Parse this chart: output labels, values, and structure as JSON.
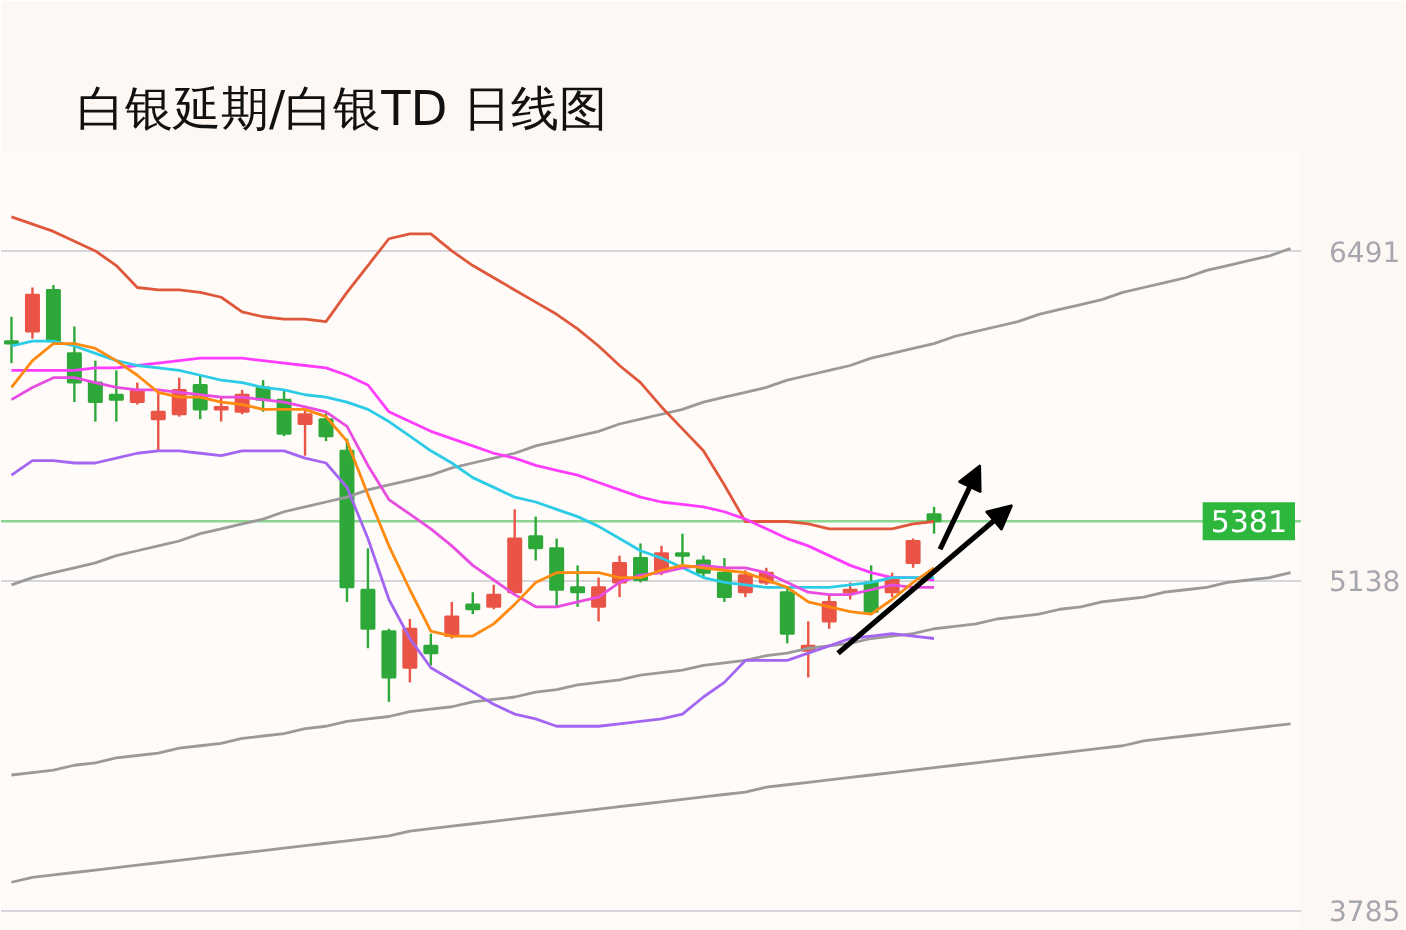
{
  "chart_data": {
    "type": "candlestick",
    "title": "白银延期/白银TD 日线图",
    "categories": [
      null,
      null,
      null,
      null,
      null,
      null,
      null,
      null,
      null,
      null,
      null,
      null,
      null,
      null,
      null,
      null,
      null,
      null,
      null,
      null,
      null,
      null,
      null,
      null,
      null,
      null,
      null,
      null,
      null,
      null,
      null,
      null,
      null,
      null,
      null,
      null,
      null,
      null,
      null,
      null,
      null,
      null,
      null,
      null,
      null,
      null,
      null,
      null,
      null,
      null,
      null,
      null,
      null,
      null,
      null,
      null,
      null,
      null,
      null,
      null,
      null,
      null
    ],
    "ohlc": [
      [
        6120,
        6220,
        6030,
        6110
      ],
      [
        6160,
        6340,
        6130,
        6310
      ],
      [
        6330,
        6350,
        6110,
        6120
      ],
      [
        6070,
        6180,
        5870,
        5950
      ],
      [
        5950,
        6040,
        5790,
        5870
      ],
      [
        5900,
        6000,
        5790,
        5880
      ],
      [
        5870,
        5950,
        5860,
        5920
      ],
      [
        5800,
        5920,
        5670,
        5830
      ],
      [
        5820,
        5970,
        5810,
        5920
      ],
      [
        5940,
        5980,
        5800,
        5840
      ],
      [
        5840,
        5890,
        5790,
        5850
      ],
      [
        5830,
        5920,
        5820,
        5900
      ],
      [
        5930,
        5960,
        5830,
        5880
      ],
      [
        5880,
        5920,
        5730,
        5740
      ],
      [
        5780,
        5840,
        5650,
        5820
      ],
      [
        5800,
        5830,
        5710,
        5730
      ],
      [
        5670,
        5720,
        5050,
        5110
      ],
      [
        5100,
        5270,
        4860,
        4940
      ],
      [
        4930,
        4940,
        4640,
        4740
      ],
      [
        4780,
        4980,
        4720,
        4940
      ],
      [
        4870,
        4920,
        4790,
        4840
      ],
      [
        4910,
        5050,
        4900,
        4990
      ],
      [
        5040,
        5090,
        5000,
        5020
      ],
      [
        5030,
        5120,
        5020,
        5080
      ],
      [
        5090,
        5430,
        5080,
        5310
      ],
      [
        5320,
        5400,
        5220,
        5270
      ],
      [
        5270,
        5310,
        5030,
        5100
      ],
      [
        5110,
        5200,
        5030,
        5090
      ],
      [
        5030,
        5150,
        4970,
        5110
      ],
      [
        5130,
        5240,
        5070,
        5210
      ],
      [
        5230,
        5290,
        5130,
        5140
      ],
      [
        5180,
        5280,
        5160,
        5250
      ],
      [
        5250,
        5330,
        5190,
        5240
      ],
      [
        5220,
        5240,
        5150,
        5170
      ],
      [
        5170,
        5230,
        5050,
        5070
      ],
      [
        5090,
        5180,
        5070,
        5160
      ],
      [
        5130,
        5190,
        5120,
        5170
      ],
      [
        5090,
        5110,
        4880,
        4920
      ],
      [
        4850,
        4970,
        4740,
        4870
      ],
      [
        4970,
        5080,
        4940,
        5050
      ],
      [
        5090,
        5130,
        5060,
        5100
      ],
      [
        5130,
        5200,
        5000,
        5010
      ],
      [
        5090,
        5170,
        5070,
        5150
      ],
      [
        5210,
        5310,
        5190,
        5300
      ],
      [
        5410,
        5440,
        5330,
        5381
      ],
      null,
      null,
      null,
      null,
      null,
      null,
      null,
      null,
      null,
      null,
      null,
      null,
      null,
      null,
      null,
      null,
      null
    ],
    "colors": [
      "#2fa83a",
      "#ea5446",
      "#2fa83a",
      "#2fa83a",
      "#2fa83a",
      "#2fa83a",
      "#ea5446",
      "#ea5446",
      "#ea5446",
      "#2fa83a",
      "#ea5446",
      "#ea5446",
      "#2fa83a",
      "#2fa83a",
      "#ea5446",
      "#2fa83a",
      "#2fa83a",
      "#2fa83a",
      "#2fa83a",
      "#ea5446",
      "#2fa83a",
      "#ea5446",
      "#2fa83a",
      "#ea5446",
      "#ea5446",
      "#2fa83a",
      "#2fa83a",
      "#2fa83a",
      "#ea5446",
      "#ea5446",
      "#2fa83a",
      "#ea5446",
      "#2fa83a",
      "#2fa83a",
      "#2fa83a",
      "#ea5446",
      "#ea5446",
      "#2fa83a",
      "#ea5446",
      "#ea5446",
      "#ea5446",
      "#2fa83a",
      "#ea5446",
      "#ea5446",
      "#2fa83a",
      null,
      null,
      null,
      null,
      null,
      null,
      null,
      null,
      null,
      null,
      null,
      null,
      null,
      null,
      null,
      null,
      null
    ],
    "series": [
      {
        "type": "line",
        "color": "#9a9a9a",
        "values": [
          5120,
          5150,
          5170,
          5190,
          5210,
          5240,
          5260,
          5280,
          5300,
          5330,
          5350,
          5370,
          5390,
          5420,
          5440,
          5460,
          5480,
          5510,
          5530,
          5550,
          5570,
          5600,
          5620,
          5640,
          5660,
          5690,
          5710,
          5730,
          5750,
          5780,
          5800,
          5820,
          5840,
          5870,
          5890,
          5910,
          5930,
          5960,
          5980,
          6000,
          6020,
          6050,
          6070,
          6090,
          6110,
          6140,
          6160,
          6180,
          6200,
          6230,
          6250,
          6270,
          6290,
          6320,
          6340,
          6360,
          6380,
          6410,
          6430,
          6450,
          6470,
          6500
        ]
      },
      {
        "type": "line",
        "color": "#9a9a9a",
        "values": [
          4340,
          4350,
          4360,
          4380,
          4390,
          4410,
          4420,
          4430,
          4450,
          4460,
          4470,
          4490,
          4500,
          4510,
          4530,
          4540,
          4560,
          4570,
          4580,
          4600,
          4610,
          4620,
          4640,
          4650,
          4660,
          4680,
          4690,
          4710,
          4720,
          4730,
          4750,
          4760,
          4770,
          4790,
          4800,
          4810,
          4830,
          4840,
          4860,
          4870,
          4880,
          4900,
          4910,
          4920,
          4940,
          4950,
          4960,
          4980,
          4990,
          5000,
          5020,
          5030,
          5050,
          5060,
          5070,
          5090,
          5100,
          5110,
          5130,
          5140,
          5150,
          5170
        ]
      },
      {
        "type": "line",
        "color": "#9a9a9a",
        "values": [
          3900,
          3920,
          3930,
          3940,
          3950,
          3960,
          3970,
          3980,
          3990,
          4000,
          4010,
          4020,
          4030,
          4040,
          4050,
          4060,
          4070,
          4080,
          4090,
          4110,
          4120,
          4130,
          4140,
          4150,
          4160,
          4170,
          4180,
          4190,
          4200,
          4210,
          4220,
          4230,
          4240,
          4250,
          4260,
          4270,
          4290,
          4300,
          4310,
          4320,
          4330,
          4340,
          4350,
          4360,
          4370,
          4380,
          4390,
          4400,
          4410,
          4420,
          4430,
          4440,
          4450,
          4460,
          4480,
          4490,
          4500,
          4510,
          4520,
          4530,
          4540,
          4550
        ]
      },
      {
        "type": "line",
        "color": "#e0583c",
        "values": [
          6630,
          6600,
          6570,
          6530,
          6490,
          6430,
          6340,
          6330,
          6330,
          6320,
          6300,
          6240,
          6220,
          6210,
          6210,
          6200,
          6320,
          6430,
          6540,
          6560,
          6560,
          6490,
          6430,
          6380,
          6330,
          6280,
          6230,
          6170,
          6100,
          6020,
          5950,
          5850,
          5760,
          5670,
          5530,
          5380,
          5380,
          5380,
          5370,
          5350,
          5350,
          5350,
          5350,
          5370,
          5380,
          null,
          null,
          null,
          null,
          null,
          null,
          null,
          null,
          null,
          null,
          null,
          null,
          null,
          null,
          null,
          null,
          null
        ]
      },
      {
        "type": "line",
        "color": "#ff3cff",
        "values": [
          6000,
          6000,
          6000,
          6000,
          6010,
          6010,
          6020,
          6030,
          6040,
          6050,
          6050,
          6050,
          6040,
          6030,
          6020,
          6010,
          5980,
          5940,
          5830,
          5790,
          5750,
          5720,
          5690,
          5660,
          5640,
          5610,
          5590,
          5570,
          5540,
          5510,
          5480,
          5460,
          5450,
          5440,
          5420,
          5390,
          5350,
          5310,
          5280,
          5240,
          5200,
          5170,
          5150,
          5150,
          5140,
          null,
          null,
          null,
          null,
          null,
          null,
          null,
          null,
          null,
          null,
          null,
          null,
          null,
          null,
          null,
          null,
          null
        ]
      },
      {
        "type": "line",
        "color": "#2ccbe6",
        "values": [
          6100,
          6120,
          6120,
          6100,
          6070,
          6040,
          6020,
          6010,
          6000,
          5980,
          5960,
          5950,
          5930,
          5920,
          5900,
          5890,
          5870,
          5840,
          5790,
          5730,
          5670,
          5620,
          5560,
          5520,
          5480,
          5460,
          5430,
          5400,
          5360,
          5310,
          5260,
          5230,
          5190,
          5150,
          5130,
          5120,
          5110,
          5110,
          5110,
          5110,
          5120,
          5130,
          5150,
          5150,
          5150,
          null,
          null,
          null,
          null,
          null,
          null,
          null,
          null,
          null,
          null,
          null,
          null,
          null,
          null,
          null,
          null,
          null
        ]
      },
      {
        "type": "line",
        "color": "#e84ce0",
        "values": [
          5880,
          5930,
          5970,
          5970,
          5950,
          5930,
          5920,
          5920,
          5910,
          5900,
          5890,
          5890,
          5880,
          5870,
          5850,
          5830,
          5770,
          5610,
          5470,
          5410,
          5350,
          5280,
          5200,
          5140,
          5080,
          5030,
          5030,
          5050,
          5070,
          5130,
          5160,
          5170,
          5190,
          5200,
          5190,
          5190,
          5170,
          5130,
          5090,
          5080,
          5080,
          5100,
          5120,
          5110,
          5110,
          null,
          null,
          null,
          null,
          null,
          null,
          null,
          null,
          null,
          null,
          null,
          null,
          null,
          null,
          null,
          null,
          null
        ]
      },
      {
        "type": "line",
        "color": "#ff8a10",
        "values": [
          5930,
          6040,
          6110,
          6110,
          6090,
          6040,
          5980,
          5910,
          5890,
          5890,
          5870,
          5860,
          5840,
          5840,
          5840,
          5810,
          5710,
          5490,
          5280,
          5100,
          4930,
          4910,
          4910,
          4960,
          5040,
          5130,
          5170,
          5170,
          5170,
          5150,
          5150,
          5180,
          5200,
          5190,
          5180,
          5170,
          5140,
          5110,
          5050,
          5030,
          5010,
          5000,
          5060,
          5130,
          5190,
          null,
          null,
          null,
          null,
          null,
          null,
          null,
          null,
          null,
          null,
          null,
          null,
          null,
          null,
          null,
          null,
          null
        ]
      },
      {
        "type": "line",
        "color": "#a466f2",
        "values": [
          5570,
          5630,
          5630,
          5620,
          5620,
          5640,
          5660,
          5670,
          5670,
          5660,
          5650,
          5670,
          5670,
          5670,
          5640,
          5620,
          5520,
          5310,
          5060,
          4900,
          4780,
          4730,
          4680,
          4630,
          4590,
          4570,
          4540,
          4540,
          4540,
          4550,
          4560,
          4570,
          4590,
          4660,
          4720,
          4810,
          4810,
          4810,
          4840,
          4870,
          4900,
          4910,
          4920,
          4910,
          4900,
          null,
          null,
          null,
          null,
          null,
          null,
          null,
          null,
          null,
          null,
          null,
          null,
          null,
          null,
          null,
          null,
          null
        ]
      }
    ],
    "ylim": [
      3700,
      6900
    ],
    "yticks": [
      3785,
      5138,
      6491
    ],
    "ref_lines": [
      {
        "axis": "y",
        "value": 5381,
        "label": "5381",
        "color": "#2db83d"
      }
    ],
    "grid": "y",
    "tick_labels": "y"
  }
}
